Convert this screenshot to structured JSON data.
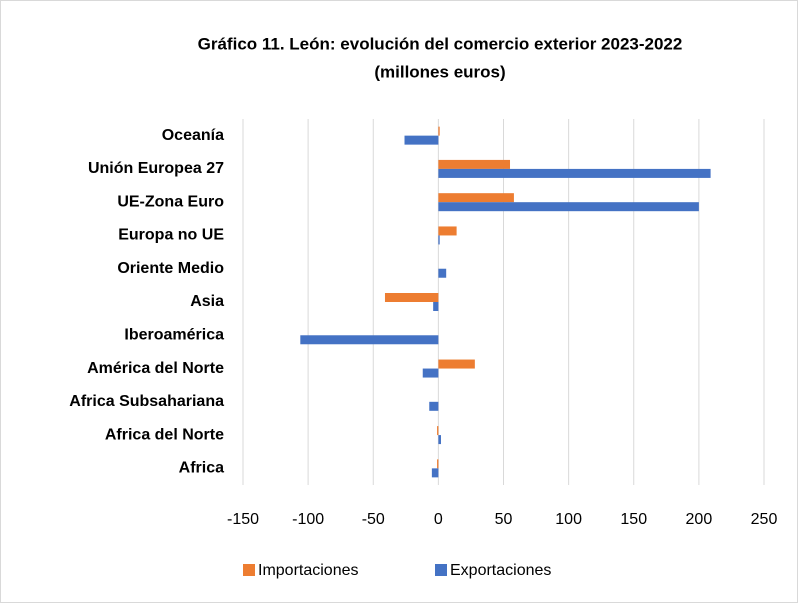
{
  "chart_data": {
    "type": "barh",
    "title": [
      "Gráfico 11. León: evolución del comercio exterior 2023-2022",
      "(millones euros)"
    ],
    "categories": [
      "Oceanía",
      "Unión Europea 27",
      "UE-Zona Euro",
      "Europa no UE",
      "Oriente Medio",
      "Asia",
      "Iberoamérica",
      "América del Norte",
      "Africa Subsahariana",
      "Africa del Norte",
      "Africa"
    ],
    "series": [
      {
        "name": "Importaciones",
        "color": "#ed7d31",
        "values": [
          1,
          55,
          58,
          14,
          0,
          -41,
          0,
          28,
          0,
          -1,
          -1
        ]
      },
      {
        "name": "Exportaciones",
        "color": "#4472c4",
        "values": [
          -26,
          209,
          200,
          1,
          6,
          -4,
          -106,
          -12,
          -7,
          2,
          -5
        ]
      }
    ],
    "xlim": [
      -150,
      250
    ],
    "xticks": [
      -150,
      -100,
      -50,
      0,
      50,
      100,
      150,
      200,
      250
    ],
    "grid": true,
    "legend": "bottom"
  }
}
